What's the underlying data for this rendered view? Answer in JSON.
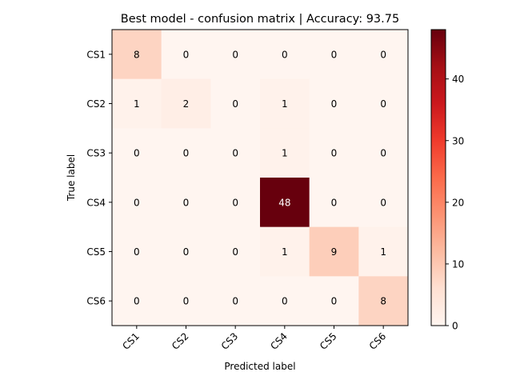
{
  "chart_data": {
    "type": "heatmap",
    "title": "Best model - confusion matrix | Accuracy: 93.75",
    "xlabel": "Predicted label",
    "ylabel": "True label",
    "x_categories": [
      "CS1",
      "CS2",
      "CS3",
      "CS4",
      "CS5",
      "CS6"
    ],
    "y_categories": [
      "CS1",
      "CS2",
      "CS3",
      "CS4",
      "CS5",
      "CS6"
    ],
    "values": [
      [
        8,
        0,
        0,
        0,
        0,
        0
      ],
      [
        1,
        2,
        0,
        1,
        0,
        0
      ],
      [
        0,
        0,
        0,
        1,
        0,
        0
      ],
      [
        0,
        0,
        0,
        48,
        0,
        0
      ],
      [
        0,
        0,
        0,
        1,
        9,
        1
      ],
      [
        0,
        0,
        0,
        0,
        0,
        8
      ]
    ],
    "colormap": "Reds",
    "colorbar": {
      "min": 0,
      "max": 48,
      "ticks": [
        0,
        10,
        20,
        30,
        40
      ]
    },
    "text_threshold": 24
  }
}
